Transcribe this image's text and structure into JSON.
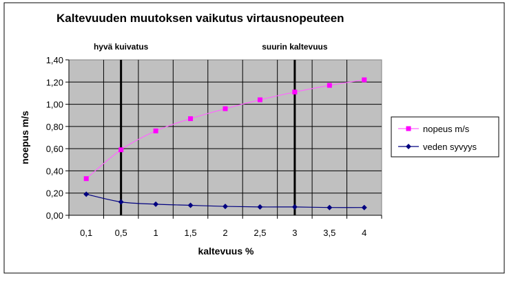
{
  "chart_data": {
    "type": "line",
    "title": "Kaltevuuden muutoksen vaikutus virtausnopeuteen",
    "xlabel": "kaltevuus %",
    "ylabel": "noepus m/s",
    "categories": [
      "0,1",
      "0,5",
      "1",
      "1,5",
      "2",
      "2,5",
      "3",
      "3,5",
      "4"
    ],
    "y_ticks": [
      "0,00",
      "0,20",
      "0,40",
      "0,60",
      "0,80",
      "1,00",
      "1,20",
      "1,40"
    ],
    "ylim": [
      0,
      1.4
    ],
    "y_step": 0.2,
    "grid": true,
    "plot_background": "#c0c0c0",
    "legend_position": "right",
    "series": [
      {
        "name": "nopeus m/s",
        "color": "#ff00ff",
        "line_color": "#ff66ff",
        "marker": "square",
        "values": [
          0.33,
          0.59,
          0.76,
          0.87,
          0.96,
          1.04,
          1.11,
          1.17,
          1.22
        ]
      },
      {
        "name": "veden syvyys",
        "color": "#000080",
        "line_color": "#000080",
        "marker": "diamond",
        "values": [
          0.19,
          0.12,
          0.1,
          0.09,
          0.08,
          0.075,
          0.075,
          0.07,
          0.07
        ]
      }
    ],
    "annotations": [
      {
        "text": "hyvä kuivatus",
        "category": "0,5"
      },
      {
        "text": "suurin kaltevuus",
        "category": "3"
      }
    ]
  }
}
